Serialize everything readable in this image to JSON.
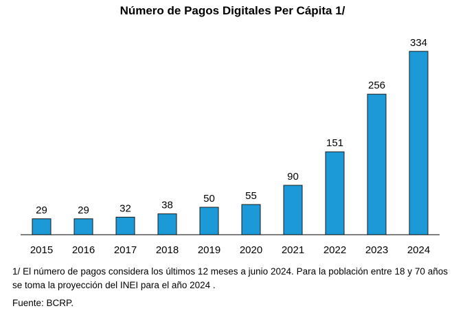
{
  "chart_data": {
    "type": "bar",
    "title": "Número de Pagos Digitales Per Cápita 1/",
    "categories": [
      "2015",
      "2016",
      "2017",
      "2018",
      "2019",
      "2020",
      "2021",
      "2022",
      "2023",
      "2024"
    ],
    "values": [
      29,
      29,
      32,
      38,
      50,
      55,
      90,
      151,
      256,
      334
    ],
    "data_labels": [
      "29",
      "29",
      "32",
      "38",
      "50",
      "55",
      "90",
      "151",
      "256",
      "334"
    ],
    "xlabel": "",
    "ylabel": "",
    "ylim": [
      0,
      340
    ],
    "grid": false,
    "legend": "none",
    "bar_color": "#1c9ad8",
    "bar_edge_color": "#1a1a1a"
  },
  "footnotes": {
    "note": "1/ El número de pagos considera los últimos 12 meses a junio 2024. Para la población entre 18 y 70 años se toma la proyección del INEI para el año 2024 .",
    "source": "Fuente: BCRP."
  }
}
